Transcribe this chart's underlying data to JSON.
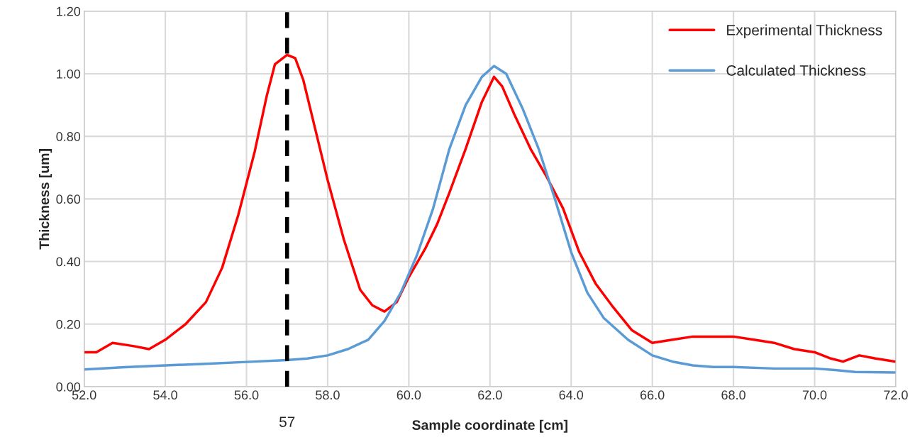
{
  "chart_data": {
    "type": "line",
    "xlabel": "Sample coordinate [cm]",
    "ylabel": "Thickness [um]",
    "xlim": [
      52,
      72
    ],
    "ylim": [
      0,
      1.2
    ],
    "xticks": [
      {
        "value": 52,
        "label": "52.0"
      },
      {
        "value": 54,
        "label": "54.0"
      },
      {
        "value": 56,
        "label": "56.0"
      },
      {
        "value": 58,
        "label": "58.0"
      },
      {
        "value": 60,
        "label": "60.0"
      },
      {
        "value": 62,
        "label": "62.0"
      },
      {
        "value": 64,
        "label": "64.0"
      },
      {
        "value": 66,
        "label": "66.0"
      },
      {
        "value": 68,
        "label": "68.0"
      },
      {
        "value": 70,
        "label": "70.0"
      },
      {
        "value": 72,
        "label": "72.0"
      }
    ],
    "yticks": [
      {
        "value": 0,
        "label": "0.00"
      },
      {
        "value": 0.2,
        "label": "0.20"
      },
      {
        "value": 0.4,
        "label": "0.40"
      },
      {
        "value": 0.6,
        "label": "0.60"
      },
      {
        "value": 0.8,
        "label": "0.80"
      },
      {
        "value": 1.0,
        "label": "1.00"
      },
      {
        "value": 1.2,
        "label": "1.20"
      }
    ],
    "grid": true,
    "legend": "top right",
    "marker": "none",
    "line_style": "solid",
    "ref_lines": [
      {
        "axis": "x",
        "value": 57,
        "label": "57",
        "color": "#000000",
        "line_style": "dashed"
      }
    ],
    "series": [
      {
        "name": "Experimental Thickness",
        "color": "#ff0000",
        "x": [
          52.0,
          52.3,
          52.7,
          53.2,
          53.6,
          54.0,
          54.5,
          55.0,
          55.4,
          55.8,
          56.2,
          56.5,
          56.7,
          57.0,
          57.2,
          57.4,
          57.7,
          58.0,
          58.4,
          58.8,
          59.1,
          59.4,
          59.7,
          60.0,
          60.4,
          60.7,
          61.0,
          61.4,
          61.8,
          62.1,
          62.3,
          62.6,
          63.0,
          63.4,
          63.8,
          64.2,
          64.6,
          65.0,
          65.5,
          66.0,
          66.5,
          67.0,
          67.5,
          68.0,
          68.5,
          69.0,
          69.5,
          70.0,
          70.4,
          70.7,
          71.1,
          71.5,
          72.0
        ],
        "values": [
          0.11,
          0.11,
          0.14,
          0.13,
          0.12,
          0.15,
          0.2,
          0.27,
          0.38,
          0.55,
          0.75,
          0.93,
          1.03,
          1.06,
          1.05,
          0.98,
          0.82,
          0.66,
          0.47,
          0.31,
          0.26,
          0.24,
          0.27,
          0.35,
          0.44,
          0.52,
          0.62,
          0.76,
          0.91,
          0.99,
          0.96,
          0.87,
          0.76,
          0.67,
          0.57,
          0.43,
          0.33,
          0.26,
          0.18,
          0.14,
          0.15,
          0.16,
          0.16,
          0.16,
          0.15,
          0.14,
          0.12,
          0.11,
          0.09,
          0.08,
          0.1,
          0.09,
          0.08
        ]
      },
      {
        "name": "Calculated Thickness",
        "color": "#5b9bd5",
        "x": [
          52.0,
          53.0,
          54.0,
          55.0,
          56.0,
          57.0,
          57.5,
          58.0,
          58.5,
          59.0,
          59.4,
          59.8,
          60.2,
          60.6,
          61.0,
          61.4,
          61.8,
          62.1,
          62.4,
          62.8,
          63.2,
          63.6,
          64.0,
          64.4,
          64.8,
          65.4,
          66.0,
          66.5,
          67.0,
          67.5,
          68.0,
          69.0,
          70.0,
          70.5,
          71.0,
          72.0
        ],
        "values": [
          0.055,
          0.062,
          0.068,
          0.073,
          0.079,
          0.085,
          0.09,
          0.1,
          0.12,
          0.15,
          0.21,
          0.3,
          0.42,
          0.57,
          0.76,
          0.9,
          0.99,
          1.025,
          1.0,
          0.89,
          0.76,
          0.6,
          0.43,
          0.3,
          0.22,
          0.15,
          0.1,
          0.08,
          0.068,
          0.063,
          0.063,
          0.058,
          0.058,
          0.053,
          0.047,
          0.045
        ]
      }
    ]
  }
}
